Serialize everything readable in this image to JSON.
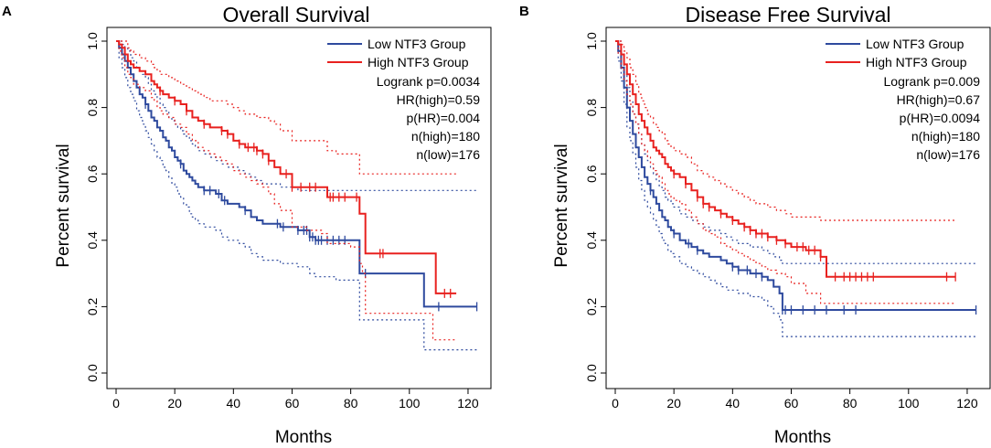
{
  "colors": {
    "low": "#2e4a9e",
    "high": "#e8211f",
    "axis": "#000000"
  },
  "chart_data": [
    {
      "type": "line",
      "panel_label": "A",
      "title": "Overall Survival",
      "xlabel": "Months",
      "ylabel": "Percent survival",
      "xlim": [
        0,
        125
      ],
      "ylim": [
        0,
        1.0
      ],
      "xticks": [
        0,
        20,
        40,
        60,
        80,
        100,
        120
      ],
      "yticks": [
        0.0,
        0.2,
        0.4,
        0.6,
        0.8,
        1.0
      ],
      "legend": [
        "Low NTF3 Group",
        "High NTF3 Group"
      ],
      "annotations": [
        "Logrank p=0.0034",
        "HR(high)=0.59",
        "p(HR)=0.004",
        "n(high)=180",
        "n(low)=176"
      ],
      "series": [
        {
          "name": "Low NTF3 Group",
          "color_key": "low",
          "style": "solid",
          "x": [
            0,
            1,
            2,
            3,
            4,
            5,
            6,
            7,
            8,
            9,
            10,
            11,
            12,
            13,
            14,
            15,
            16,
            17,
            18,
            19,
            20,
            21,
            22,
            23,
            24,
            25,
            26,
            27,
            28,
            30,
            32,
            34,
            36,
            38,
            40,
            42,
            44,
            46,
            48,
            50,
            52,
            54,
            56,
            58,
            60,
            62,
            64,
            66,
            68,
            70,
            75,
            80,
            83,
            85,
            90,
            100,
            105,
            110,
            115,
            123
          ],
          "y": [
            1.0,
            0.98,
            0.96,
            0.94,
            0.92,
            0.9,
            0.88,
            0.86,
            0.84,
            0.83,
            0.81,
            0.79,
            0.77,
            0.76,
            0.74,
            0.73,
            0.71,
            0.7,
            0.68,
            0.67,
            0.65,
            0.64,
            0.63,
            0.61,
            0.6,
            0.59,
            0.58,
            0.57,
            0.56,
            0.55,
            0.55,
            0.54,
            0.52,
            0.51,
            0.51,
            0.5,
            0.49,
            0.47,
            0.46,
            0.45,
            0.45,
            0.45,
            0.44,
            0.44,
            0.44,
            0.43,
            0.43,
            0.41,
            0.4,
            0.4,
            0.4,
            0.4,
            0.3,
            0.3,
            0.3,
            0.3,
            0.2,
            0.2,
            0.2,
            0.2
          ],
          "ci_upper": [
            1.0,
            1.0,
            0.99,
            0.98,
            0.97,
            0.95,
            0.94,
            0.92,
            0.91,
            0.9,
            0.89,
            0.87,
            0.85,
            0.84,
            0.83,
            0.81,
            0.8,
            0.79,
            0.77,
            0.76,
            0.75,
            0.74,
            0.73,
            0.72,
            0.71,
            0.7,
            0.69,
            0.68,
            0.67,
            0.66,
            0.65,
            0.64,
            0.63,
            0.62,
            0.62,
            0.61,
            0.6,
            0.59,
            0.58,
            0.57,
            0.57,
            0.57,
            0.56,
            0.56,
            0.56,
            0.55,
            0.55,
            0.55,
            0.55,
            0.55,
            0.55,
            0.55,
            0.55,
            0.55,
            0.55,
            0.55,
            0.55,
            0.55,
            0.55,
            0.55
          ],
          "ci_lower": [
            1.0,
            0.95,
            0.92,
            0.89,
            0.86,
            0.84,
            0.82,
            0.79,
            0.77,
            0.75,
            0.73,
            0.71,
            0.69,
            0.67,
            0.65,
            0.64,
            0.62,
            0.61,
            0.59,
            0.57,
            0.56,
            0.54,
            0.53,
            0.51,
            0.5,
            0.48,
            0.47,
            0.46,
            0.45,
            0.44,
            0.44,
            0.43,
            0.41,
            0.4,
            0.4,
            0.39,
            0.38,
            0.36,
            0.35,
            0.34,
            0.34,
            0.34,
            0.33,
            0.33,
            0.33,
            0.32,
            0.32,
            0.3,
            0.29,
            0.29,
            0.28,
            0.28,
            0.16,
            0.16,
            0.16,
            0.16,
            0.07,
            0.07,
            0.07,
            0.07
          ],
          "censor_x": [
            10,
            22,
            30,
            32,
            35,
            37,
            44,
            55,
            57,
            62,
            64,
            65,
            66,
            67,
            68,
            69,
            70,
            72,
            74,
            76,
            78,
            85,
            110,
            123
          ]
        },
        {
          "name": "High NTF3 Group",
          "color_key": "high",
          "style": "solid",
          "x": [
            0,
            1,
            2,
            3,
            4,
            5,
            6,
            8,
            10,
            12,
            13,
            14,
            15,
            16,
            18,
            20,
            22,
            24,
            26,
            28,
            30,
            32,
            34,
            36,
            38,
            40,
            42,
            44,
            46,
            48,
            50,
            52,
            54,
            56,
            60,
            62,
            65,
            70,
            72,
            75,
            80,
            83,
            84,
            85,
            90,
            100,
            108,
            109,
            110,
            116
          ],
          "y": [
            1.0,
            0.99,
            0.98,
            0.96,
            0.94,
            0.93,
            0.92,
            0.91,
            0.9,
            0.88,
            0.87,
            0.86,
            0.85,
            0.84,
            0.83,
            0.82,
            0.81,
            0.79,
            0.77,
            0.76,
            0.75,
            0.74,
            0.74,
            0.73,
            0.72,
            0.7,
            0.69,
            0.68,
            0.68,
            0.67,
            0.66,
            0.64,
            0.62,
            0.6,
            0.56,
            0.56,
            0.56,
            0.56,
            0.53,
            0.53,
            0.53,
            0.48,
            0.48,
            0.36,
            0.36,
            0.36,
            0.36,
            0.24,
            0.24,
            0.24
          ],
          "ci_upper": [
            1.0,
            1.0,
            1.0,
            1.0,
            0.98,
            0.97,
            0.96,
            0.95,
            0.94,
            0.93,
            0.92,
            0.91,
            0.9,
            0.9,
            0.89,
            0.88,
            0.87,
            0.86,
            0.85,
            0.84,
            0.83,
            0.82,
            0.82,
            0.82,
            0.81,
            0.8,
            0.79,
            0.78,
            0.78,
            0.77,
            0.77,
            0.76,
            0.75,
            0.73,
            0.7,
            0.7,
            0.7,
            0.7,
            0.67,
            0.66,
            0.66,
            0.6,
            0.6,
            0.6,
            0.6,
            0.6,
            0.6,
            0.6,
            0.6,
            0.6
          ],
          "ci_lower": [
            1.0,
            0.97,
            0.95,
            0.92,
            0.9,
            0.89,
            0.87,
            0.86,
            0.85,
            0.83,
            0.82,
            0.8,
            0.79,
            0.78,
            0.77,
            0.75,
            0.74,
            0.72,
            0.7,
            0.68,
            0.67,
            0.66,
            0.65,
            0.64,
            0.63,
            0.61,
            0.6,
            0.59,
            0.58,
            0.57,
            0.56,
            0.54,
            0.51,
            0.49,
            0.44,
            0.44,
            0.43,
            0.42,
            0.39,
            0.39,
            0.38,
            0.33,
            0.3,
            0.18,
            0.18,
            0.18,
            0.1,
            0.1,
            0.1,
            0.1
          ],
          "censor_x": [
            15,
            20,
            24,
            30,
            36,
            38,
            42,
            45,
            47,
            48,
            50,
            52,
            58,
            60,
            63,
            66,
            68,
            73,
            74,
            76,
            78,
            82,
            90,
            91,
            112,
            114
          ]
        }
      ]
    },
    {
      "type": "line",
      "panel_label": "B",
      "title": "Disease Free Survival",
      "xlabel": "Months",
      "ylabel": "Percent survival",
      "xlim": [
        0,
        125
      ],
      "ylim": [
        0,
        1.0
      ],
      "xticks": [
        0,
        20,
        40,
        60,
        80,
        100,
        120
      ],
      "yticks": [
        0.0,
        0.2,
        0.4,
        0.6,
        0.8,
        1.0
      ],
      "legend": [
        "Low NTF3 Group",
        "High NTF3 Group"
      ],
      "annotations": [
        "Logrank p=0.009",
        "HR(high)=0.67",
        "p(HR)=0.0094",
        "n(high)=180",
        "n(low)=176"
      ],
      "series": [
        {
          "name": "Low NTF3 Group",
          "color_key": "low",
          "style": "solid",
          "x": [
            0,
            1,
            2,
            3,
            4,
            5,
            6,
            7,
            8,
            9,
            10,
            11,
            12,
            13,
            14,
            15,
            16,
            17,
            18,
            19,
            20,
            22,
            24,
            26,
            28,
            30,
            32,
            34,
            36,
            38,
            40,
            42,
            44,
            46,
            48,
            50,
            52,
            54,
            56,
            57,
            60,
            70,
            80,
            90,
            100,
            110,
            123
          ],
          "y": [
            1.0,
            0.97,
            0.92,
            0.86,
            0.8,
            0.76,
            0.72,
            0.68,
            0.65,
            0.62,
            0.59,
            0.57,
            0.55,
            0.53,
            0.51,
            0.49,
            0.47,
            0.46,
            0.44,
            0.43,
            0.42,
            0.4,
            0.39,
            0.38,
            0.37,
            0.36,
            0.35,
            0.35,
            0.34,
            0.33,
            0.32,
            0.31,
            0.31,
            0.3,
            0.3,
            0.29,
            0.28,
            0.26,
            0.24,
            0.19,
            0.19,
            0.19,
            0.19,
            0.19,
            0.19,
            0.19,
            0.19
          ],
          "ci_upper": [
            1.0,
            1.0,
            0.96,
            0.91,
            0.86,
            0.82,
            0.78,
            0.75,
            0.72,
            0.69,
            0.66,
            0.64,
            0.62,
            0.6,
            0.58,
            0.56,
            0.55,
            0.53,
            0.52,
            0.51,
            0.5,
            0.48,
            0.47,
            0.46,
            0.45,
            0.44,
            0.43,
            0.43,
            0.42,
            0.41,
            0.4,
            0.39,
            0.39,
            0.38,
            0.38,
            0.37,
            0.36,
            0.35,
            0.34,
            0.33,
            0.33,
            0.33,
            0.33,
            0.33,
            0.33,
            0.33,
            0.33
          ],
          "ci_lower": [
            1.0,
            0.94,
            0.88,
            0.81,
            0.74,
            0.7,
            0.66,
            0.62,
            0.58,
            0.55,
            0.52,
            0.5,
            0.48,
            0.46,
            0.44,
            0.42,
            0.4,
            0.39,
            0.37,
            0.36,
            0.35,
            0.33,
            0.32,
            0.31,
            0.3,
            0.29,
            0.28,
            0.27,
            0.26,
            0.25,
            0.25,
            0.24,
            0.24,
            0.23,
            0.23,
            0.22,
            0.2,
            0.18,
            0.16,
            0.11,
            0.11,
            0.11,
            0.11,
            0.11,
            0.11,
            0.11,
            0.11
          ],
          "censor_x": [
            12,
            20,
            25,
            28,
            40,
            42,
            45,
            48,
            50,
            57,
            58,
            60,
            64,
            68,
            72,
            78,
            82,
            123
          ]
        },
        {
          "name": "High NTF3 Group",
          "color_key": "high",
          "style": "solid",
          "x": [
            0,
            1,
            2,
            3,
            4,
            5,
            6,
            7,
            8,
            9,
            10,
            11,
            12,
            13,
            14,
            15,
            16,
            17,
            18,
            19,
            20,
            22,
            24,
            26,
            28,
            30,
            32,
            34,
            36,
            38,
            40,
            42,
            44,
            46,
            48,
            50,
            52,
            55,
            58,
            60,
            65,
            70,
            72,
            80,
            90,
            100,
            110,
            116
          ],
          "y": [
            1.0,
            0.99,
            0.96,
            0.93,
            0.9,
            0.87,
            0.84,
            0.81,
            0.78,
            0.76,
            0.74,
            0.72,
            0.7,
            0.68,
            0.67,
            0.66,
            0.65,
            0.63,
            0.62,
            0.61,
            0.6,
            0.59,
            0.57,
            0.55,
            0.53,
            0.51,
            0.5,
            0.49,
            0.48,
            0.47,
            0.46,
            0.45,
            0.44,
            0.43,
            0.42,
            0.42,
            0.41,
            0.4,
            0.39,
            0.38,
            0.37,
            0.35,
            0.29,
            0.29,
            0.29,
            0.29,
            0.29,
            0.29
          ],
          "ci_upper": [
            1.0,
            1.0,
            0.99,
            0.97,
            0.95,
            0.92,
            0.9,
            0.87,
            0.84,
            0.82,
            0.8,
            0.78,
            0.77,
            0.75,
            0.74,
            0.73,
            0.72,
            0.7,
            0.69,
            0.68,
            0.67,
            0.66,
            0.65,
            0.63,
            0.61,
            0.6,
            0.59,
            0.58,
            0.57,
            0.56,
            0.55,
            0.54,
            0.53,
            0.52,
            0.51,
            0.51,
            0.5,
            0.49,
            0.48,
            0.47,
            0.47,
            0.46,
            0.46,
            0.46,
            0.46,
            0.46,
            0.46,
            0.46
          ],
          "ci_lower": [
            1.0,
            0.96,
            0.92,
            0.88,
            0.84,
            0.81,
            0.78,
            0.75,
            0.72,
            0.69,
            0.67,
            0.65,
            0.63,
            0.61,
            0.6,
            0.59,
            0.57,
            0.55,
            0.54,
            0.53,
            0.52,
            0.51,
            0.49,
            0.47,
            0.45,
            0.43,
            0.42,
            0.41,
            0.39,
            0.38,
            0.37,
            0.36,
            0.35,
            0.34,
            0.33,
            0.32,
            0.31,
            0.3,
            0.29,
            0.27,
            0.24,
            0.21,
            0.21,
            0.21,
            0.21,
            0.21,
            0.21,
            0.21
          ],
          "censor_x": [
            20,
            24,
            28,
            30,
            32,
            36,
            40,
            44,
            46,
            48,
            50,
            52,
            55,
            58,
            62,
            64,
            66,
            68,
            70,
            75,
            78,
            80,
            82,
            84,
            86,
            88,
            113,
            116
          ]
        }
      ]
    }
  ]
}
